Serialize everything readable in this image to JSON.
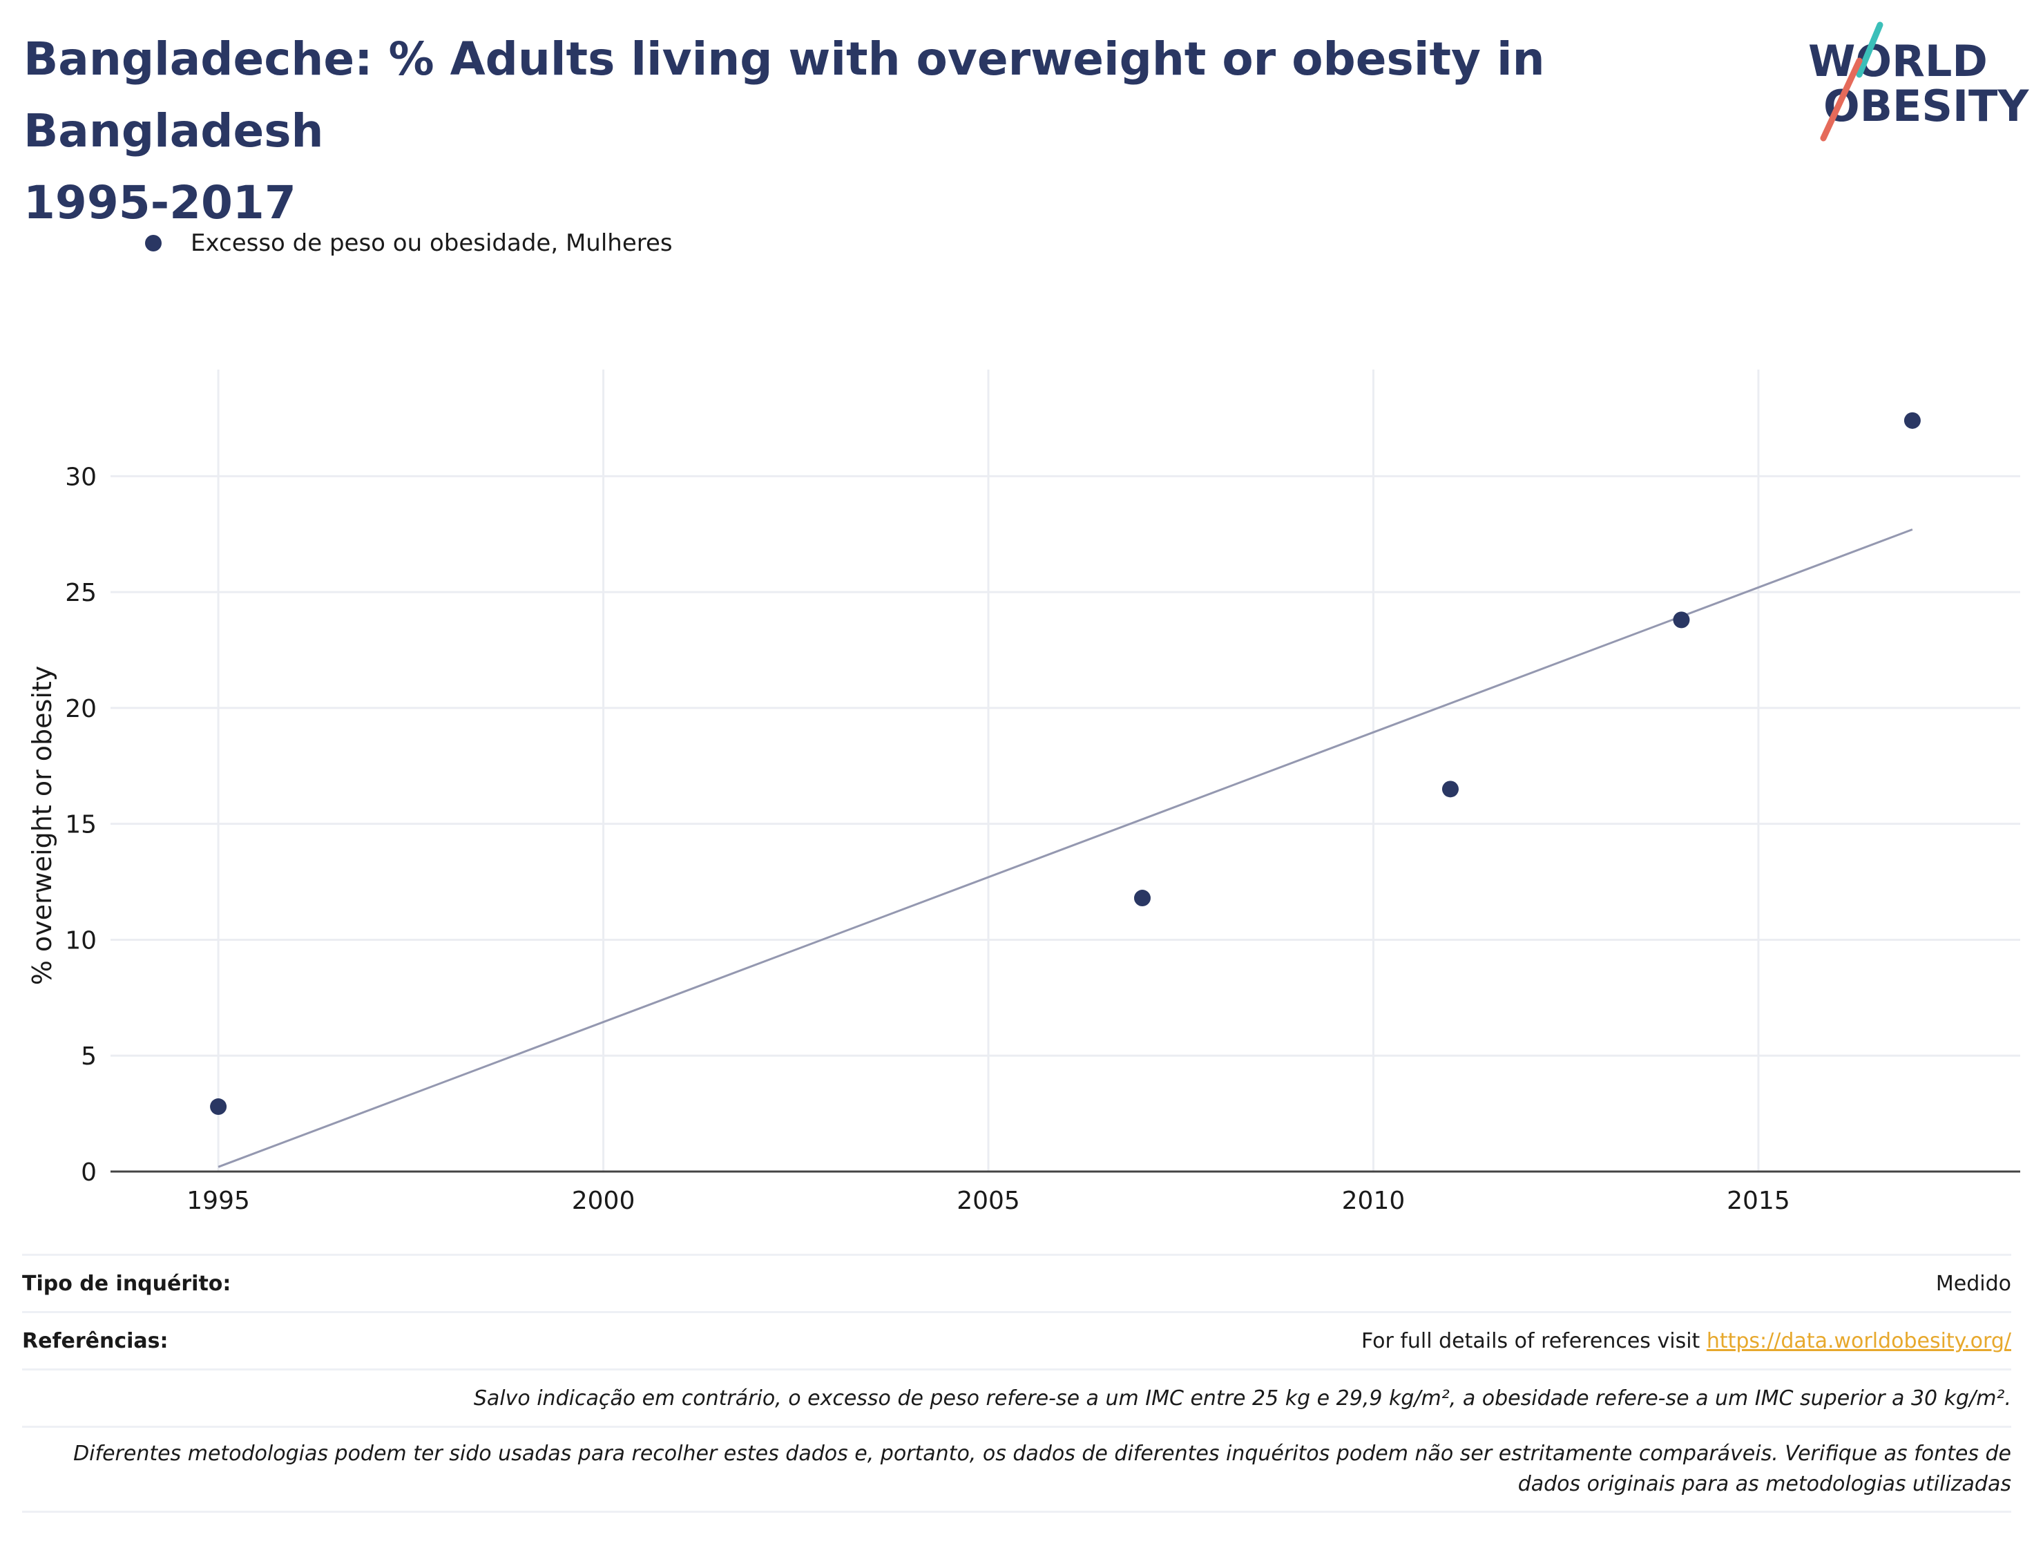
{
  "title_line1": "Bangladeche: % Adults living with overweight or obesity in Bangladesh",
  "title_line2": "1995-2017",
  "logo": {
    "line1": "WORLD",
    "line2": "OBESITY"
  },
  "colors": {
    "marker": "#2a3763",
    "trend": "#9498b0",
    "grid": "#ebedf2",
    "axis": "#444444",
    "link": "#e7a82c",
    "logo_teal": "#3bbfb9",
    "logo_red": "#e56a5a"
  },
  "chart_data": {
    "type": "scatter",
    "ylabel": "% overweight or obesity",
    "xlabel": "",
    "xlim": [
      1993.6,
      2018.4
    ],
    "ylim": [
      0,
      34.6
    ],
    "x_ticks": [
      1995,
      2000,
      2005,
      2010,
      2015
    ],
    "y_ticks": [
      0,
      5,
      10,
      15,
      20,
      25,
      30
    ],
    "grid": true,
    "legend_position": "top-left",
    "series": [
      {
        "name": "Excesso de peso ou obesidade, Mulheres",
        "x": [
          1995,
          2007,
          2011,
          2014,
          2017
        ],
        "y": [
          2.8,
          11.8,
          16.5,
          23.8,
          32.4
        ]
      }
    ],
    "trendline": {
      "x": [
        1995,
        2017
      ],
      "y": [
        0.2,
        27.7
      ]
    }
  },
  "notes": {
    "survey_label": "Tipo de inquérito:",
    "survey_value": "Medido",
    "refs_label": "Referências:",
    "refs_text": "For full details of references visit ",
    "refs_link": "https://data.worldobesity.org/",
    "bmi_note": "Salvo indicação em contrário, o excesso de peso refere-se a um IMC entre 25 kg e 29,9 kg/m², a obesidade refere-se a um IMC superior a 30 kg/m².",
    "method_note": "Diferentes metodologias podem ter sido usadas para recolher estes dados e, portanto, os dados de diferentes inquéritos podem não ser estritamente comparáveis. Verifique as fontes de dados originais para as metodologias utilizadas"
  }
}
